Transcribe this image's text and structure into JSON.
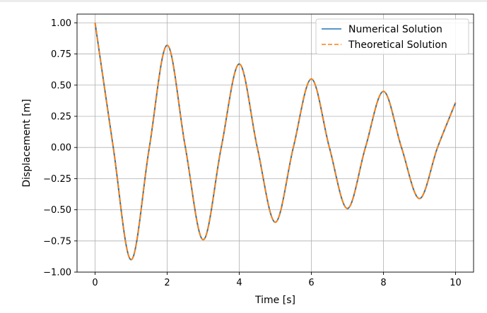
{
  "chart_data": {
    "type": "line",
    "title": "",
    "xlabel": "Time [s]",
    "ylabel": "Displacement [m]",
    "xlim": [
      -0.5,
      10.5
    ],
    "ylim": [
      -1.0,
      1.07
    ],
    "grid": true,
    "legend_position": "top-right",
    "x_ticks": [
      0,
      2,
      4,
      6,
      8,
      10
    ],
    "x_tick_labels": [
      "0",
      "2",
      "4",
      "6",
      "8",
      "10"
    ],
    "y_ticks": [
      -1.0,
      -0.75,
      -0.5,
      -0.25,
      0.0,
      0.25,
      0.5,
      0.75,
      1.0
    ],
    "y_tick_labels": [
      "−1.00",
      "−0.75",
      "−0.50",
      "−0.25",
      "0.00",
      "0.25",
      "0.50",
      "0.75",
      "1.00"
    ],
    "series": [
      {
        "name": "Numerical Solution",
        "style": "solid",
        "color": "#1f77b4",
        "x": [
          0.0,
          0.5,
          1.0,
          1.5,
          2.0,
          2.5,
          3.0,
          3.5,
          4.0,
          4.5,
          5.0,
          5.5,
          6.0,
          6.5,
          7.0,
          7.5,
          8.0,
          8.5,
          9.0,
          9.5,
          10.0
        ],
        "y": [
          1.0,
          0.01,
          -0.9,
          -0.01,
          0.82,
          0.01,
          -0.74,
          0.0,
          0.67,
          0.0,
          -0.6,
          0.0,
          0.55,
          0.0,
          -0.49,
          0.0,
          0.45,
          0.0,
          -0.41,
          0.0,
          0.36
        ]
      },
      {
        "name": "Theoretical Solution",
        "style": "dashed",
        "color": "#ff7f0e",
        "x": [
          0.0,
          0.5,
          1.0,
          1.5,
          2.0,
          2.5,
          3.0,
          3.5,
          4.0,
          4.5,
          5.0,
          5.5,
          6.0,
          6.5,
          7.0,
          7.5,
          8.0,
          8.5,
          9.0,
          9.5,
          10.0
        ],
        "y": [
          1.0,
          0.01,
          -0.9,
          -0.01,
          0.82,
          0.01,
          -0.74,
          0.0,
          0.67,
          0.0,
          -0.6,
          0.0,
          0.55,
          0.0,
          -0.49,
          0.0,
          0.45,
          0.0,
          -0.41,
          0.0,
          0.36
        ]
      }
    ]
  }
}
